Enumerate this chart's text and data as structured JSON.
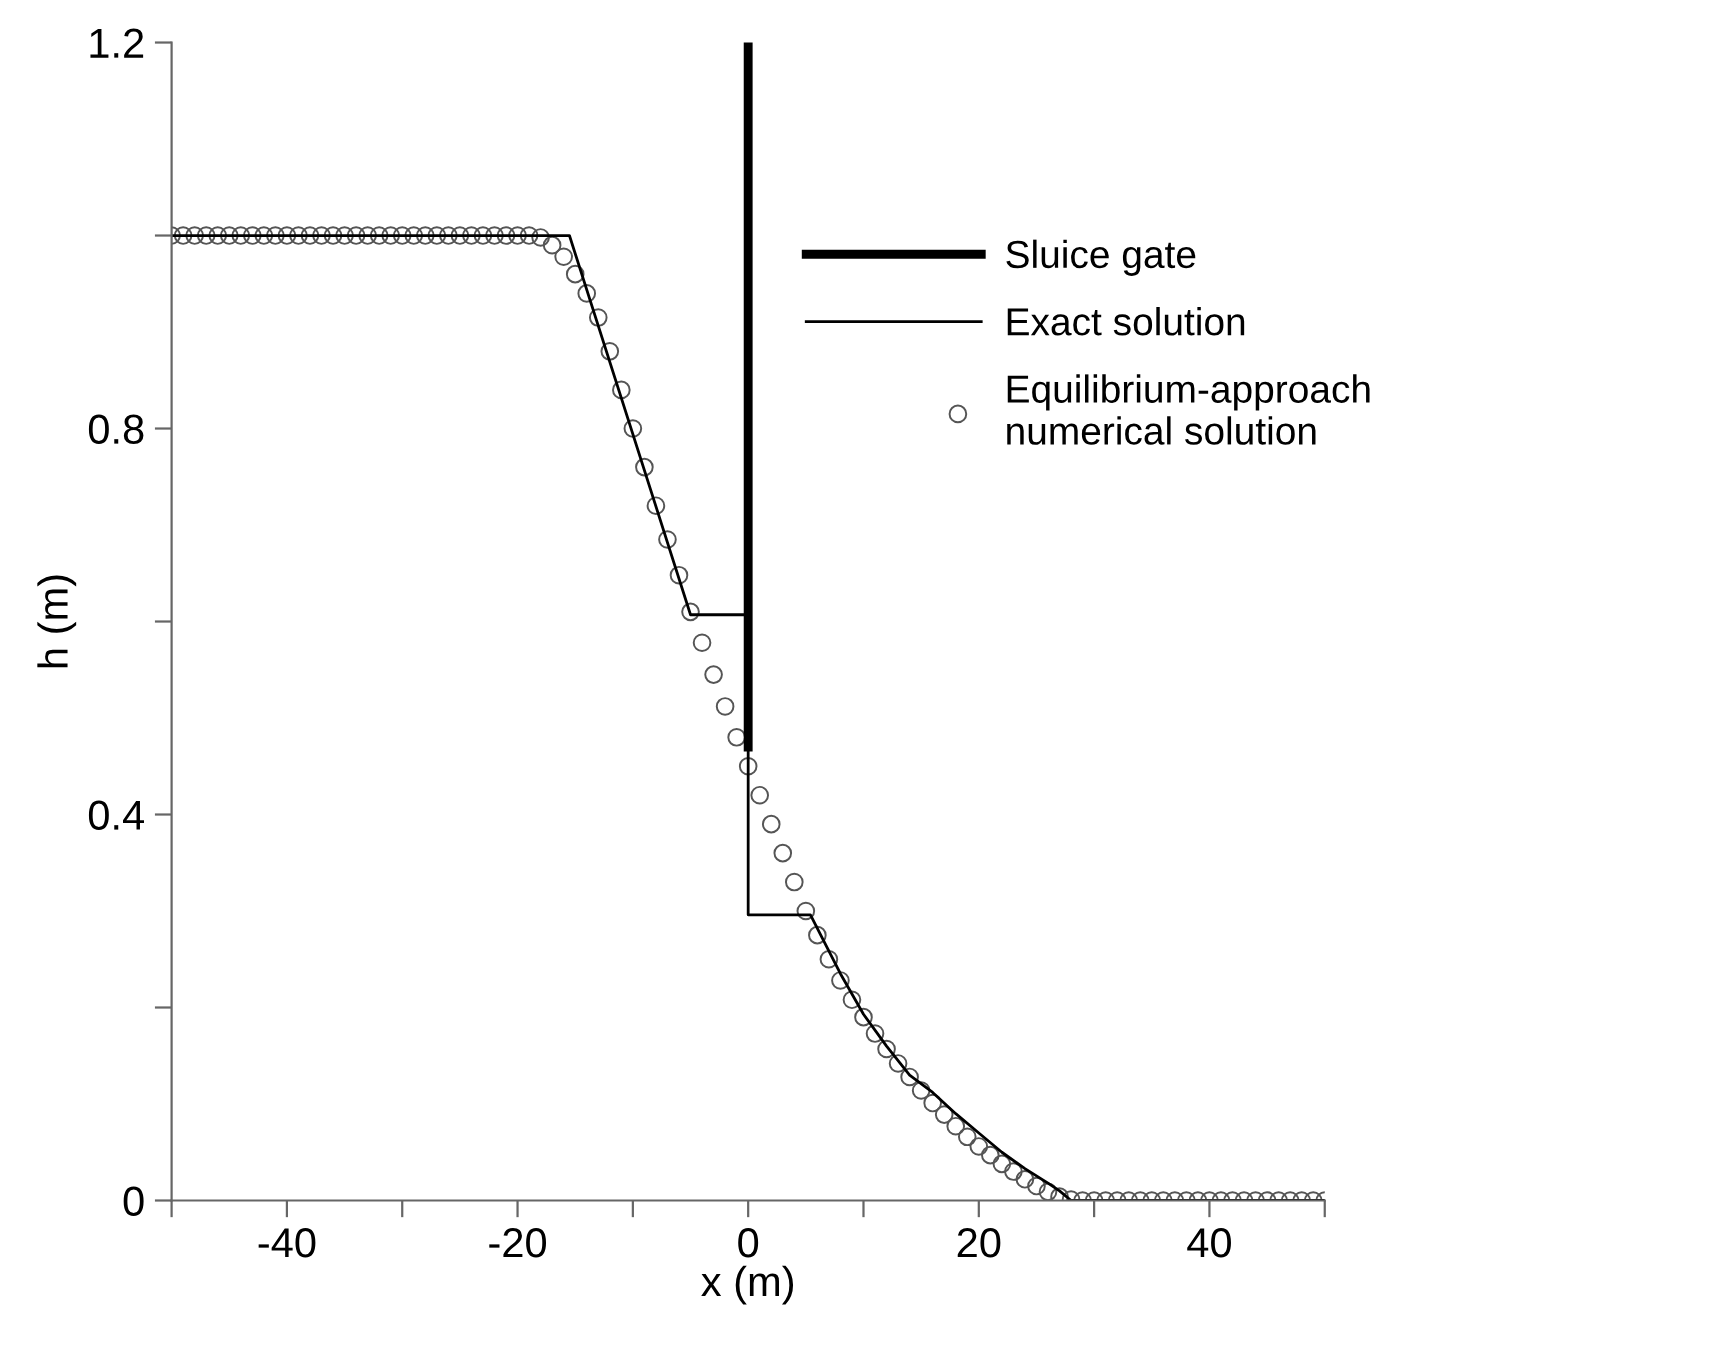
{
  "chart_data": {
    "type": "line",
    "xlabel": "x (m)",
    "ylabel": "h (m)",
    "xlim": [
      -50,
      50
    ],
    "ylim": [
      0,
      1.2
    ],
    "xticks": [
      {
        "value": -50,
        "label": null
      },
      -40,
      {
        "value": -30,
        "label": null
      },
      -20,
      {
        "value": -10,
        "label": null
      },
      0,
      {
        "value": 10,
        "label": null
      },
      20,
      {
        "value": 30,
        "label": null
      },
      40,
      {
        "value": 50,
        "label": null
      }
    ],
    "yticks": [
      0,
      {
        "value": 0.2,
        "label": null
      },
      0.4,
      {
        "value": 0.6,
        "label": null
      },
      0.8,
      {
        "value": 1.0,
        "label": null
      },
      1.2
    ],
    "grid": false,
    "legend": "top right",
    "series": [
      {
        "name": "Sluice gate",
        "type": "line",
        "color": "#000000",
        "x": [
          0,
          0
        ],
        "values": [
          1.2,
          0.47
        ]
      },
      {
        "name": "Exact solution",
        "type": "line",
        "color": "#000000",
        "x": [
          -50,
          -15.5,
          -5,
          0,
          0,
          5.4,
          8,
          10,
          12,
          14,
          16,
          18,
          20,
          22,
          24,
          26,
          27,
          28,
          50
        ],
        "values": [
          1,
          1,
          0.607,
          0.607,
          0.296,
          0.296,
          0.235,
          0.193,
          0.16,
          0.13,
          0.112,
          0.09,
          0.07,
          0.05,
          0.033,
          0.018,
          0.01,
          0,
          0
        ]
      },
      {
        "name": "Equilibrium-approach\nnumerical solution",
        "type": "scatter",
        "marker": "circle",
        "color": "#555555",
        "x": [
          -50,
          -49,
          -48,
          -47,
          -46,
          -45,
          -44,
          -43,
          -42,
          -41,
          -40,
          -39,
          -38,
          -37,
          -36,
          -35,
          -34,
          -33,
          -32,
          -31,
          -30,
          -29,
          -28,
          -27,
          -26,
          -25,
          -24,
          -23,
          -22,
          -21,
          -20,
          -19,
          -18,
          -17,
          -16,
          -15,
          -14,
          -13,
          -12,
          -11,
          -10,
          -9,
          -8,
          -7,
          -6,
          -5,
          -4,
          -3,
          -2,
          -1,
          0,
          1,
          2,
          3,
          4,
          5,
          6,
          7,
          8,
          9,
          10,
          11,
          12,
          13,
          14,
          15,
          16,
          17,
          18,
          19,
          20,
          21,
          22,
          23,
          24,
          25,
          26,
          27,
          28,
          29,
          30,
          31,
          32,
          33,
          34,
          35,
          36,
          37,
          38,
          39,
          40,
          41,
          42,
          43,
          44,
          45,
          46,
          47,
          48,
          49,
          50
        ],
        "values": [
          1,
          1,
          1,
          1,
          1,
          1,
          1,
          1,
          1,
          1,
          1,
          1,
          1,
          1,
          1,
          1,
          1,
          1,
          1,
          1,
          1,
          1,
          1,
          1,
          1,
          1,
          1,
          1,
          1,
          1,
          1,
          1,
          0.998,
          0.99,
          0.978,
          0.96,
          0.94,
          0.915,
          0.88,
          0.84,
          0.8,
          0.76,
          0.72,
          0.685,
          0.648,
          0.61,
          0.578,
          0.545,
          0.512,
          0.48,
          0.45,
          0.42,
          0.39,
          0.36,
          0.33,
          0.3,
          0.275,
          0.25,
          0.228,
          0.208,
          0.19,
          0.173,
          0.157,
          0.142,
          0.128,
          0.114,
          0.101,
          0.089,
          0.077,
          0.066,
          0.056,
          0.047,
          0.038,
          0.03,
          0.022,
          0.015,
          0.009,
          0.004,
          0.001,
          0,
          0,
          0,
          0,
          0,
          0,
          0,
          0,
          0,
          0,
          0,
          0,
          0,
          0,
          0,
          0,
          0,
          0,
          0,
          0,
          0,
          0
        ]
      }
    ]
  }
}
